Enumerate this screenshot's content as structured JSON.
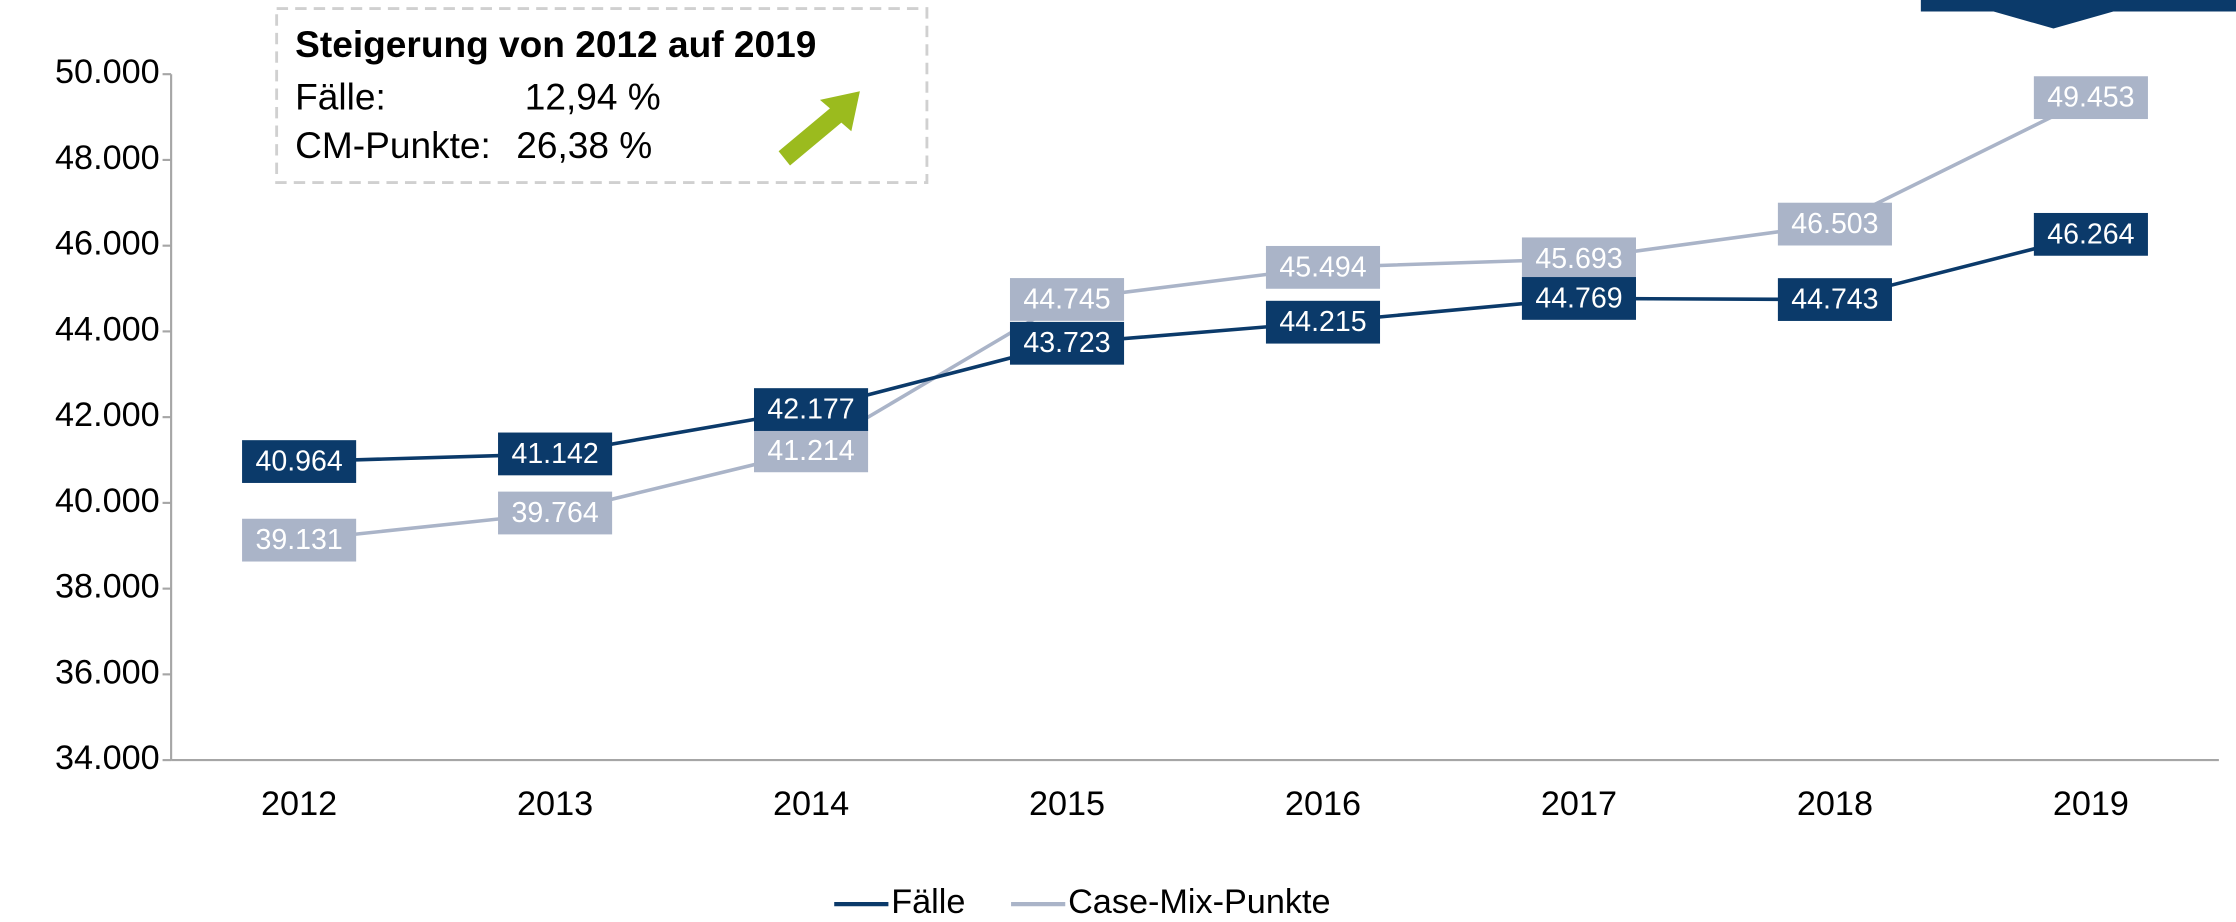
{
  "chart_data": {
    "type": "line",
    "categories": [
      "2012",
      "2013",
      "2014",
      "2015",
      "2016",
      "2017",
      "2018",
      "2019"
    ],
    "series": [
      {
        "name": "Fälle",
        "color": "#0b3a6a",
        "values": [
          40964,
          41142,
          42177,
          43723,
          44215,
          44769,
          44743,
          46264
        ],
        "value_labels": [
          "40.964",
          "41.142",
          "42.177",
          "43.723",
          "44.215",
          "44.769",
          "44.743",
          "46.264"
        ]
      },
      {
        "name": "Case-Mix-Punkte",
        "color": "#aab4c8",
        "values": [
          39131,
          39764,
          41214,
          44745,
          45494,
          45693,
          46503,
          49453
        ],
        "value_labels": [
          "39.131",
          "39.764",
          "41.214",
          "44.745",
          "45.494",
          "45.693",
          "46.503",
          "49.453"
        ]
      }
    ],
    "ylim": [
      34000,
      50000
    ],
    "yticks": [
      {
        "value": 34000,
        "label": "34.000"
      },
      {
        "value": 36000,
        "label": "36.000"
      },
      {
        "value": 38000,
        "label": "38.000"
      },
      {
        "value": 40000,
        "label": "40.000"
      },
      {
        "value": 42000,
        "label": "42.000"
      },
      {
        "value": 44000,
        "label": "44.000"
      },
      {
        "value": 46000,
        "label": "46.000"
      },
      {
        "value": 48000,
        "label": "48.000"
      },
      {
        "value": 50000,
        "label": "50.000"
      }
    ],
    "grid": false,
    "legend": "bottom",
    "annotation": {
      "title": "Steigerung von 2012 auf 2019",
      "rows": [
        [
          "Fälle:",
          "12,94 %"
        ],
        [
          "CM-Punkte:",
          "26,38 %"
        ]
      ]
    }
  }
}
